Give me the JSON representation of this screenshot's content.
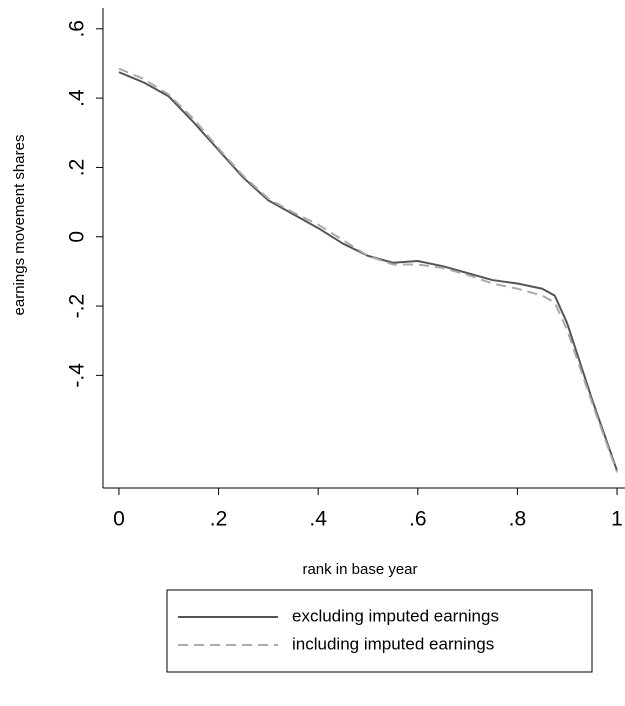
{
  "chart_data": {
    "type": "line",
    "x_label": "rank in base year",
    "y_label": "earnings movement shares",
    "x": [
      0,
      0.05,
      0.1,
      0.15,
      0.2,
      0.25,
      0.3,
      0.35,
      0.4,
      0.45,
      0.5,
      0.55,
      0.6,
      0.65,
      0.7,
      0.75,
      0.8,
      0.85,
      0.875,
      0.9,
      0.95,
      1
    ],
    "series": [
      {
        "name": "excluding imputed earnings",
        "color": "#555555",
        "dash": "solid",
        "values": [
          0.475,
          0.445,
          0.405,
          0.33,
          0.25,
          0.17,
          0.105,
          0.065,
          0.025,
          -0.02,
          -0.055,
          -0.075,
          -0.07,
          -0.085,
          -0.105,
          -0.125,
          -0.135,
          -0.15,
          -0.17,
          -0.25,
          -0.47,
          -0.675
        ]
      },
      {
        "name": "including imputed earnings",
        "color": "#aaaaaa",
        "dash": "dashed",
        "values": [
          0.485,
          0.455,
          0.41,
          0.34,
          0.255,
          0.175,
          0.11,
          0.07,
          0.035,
          -0.01,
          -0.055,
          -0.08,
          -0.08,
          -0.09,
          -0.11,
          -0.135,
          -0.15,
          -0.17,
          -0.19,
          -0.27,
          -0.48,
          -0.68
        ]
      }
    ],
    "xlim": [
      -0.032,
      1.016
    ],
    "ylim": [
      -0.725,
      0.66
    ],
    "xticks": [
      0,
      {
        "value": 0.2,
        "label": ".2"
      },
      {
        "value": 0.4,
        "label": ".4"
      },
      {
        "value": 0.6,
        "label": ".6"
      },
      {
        "value": 0.8,
        "label": ".8"
      },
      1
    ],
    "yticks": [
      {
        "value": 0.6,
        "label": ".6"
      },
      {
        "value": 0.4,
        "label": ".4"
      },
      {
        "value": 0.2,
        "label": ".2"
      },
      0,
      {
        "value": -0.2,
        "label": "-.2"
      },
      {
        "value": -0.4,
        "label": "-.4"
      }
    ]
  }
}
